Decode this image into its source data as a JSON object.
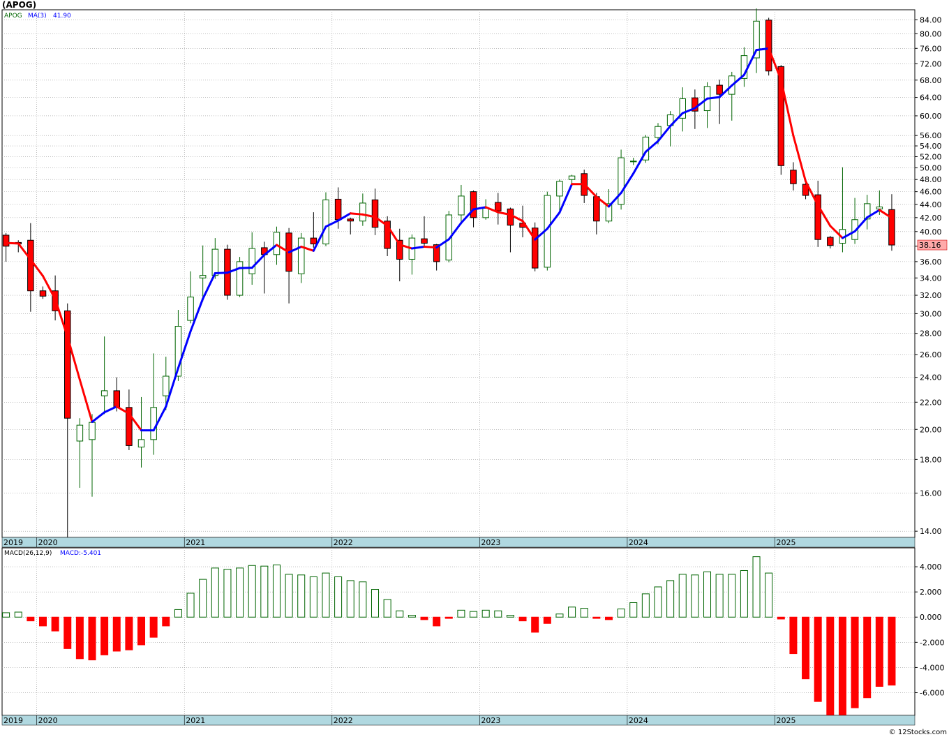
{
  "title": "(APOG)",
  "footer": "© 12Stocks.com",
  "colors": {
    "up": "#006400",
    "down": "#ff0000",
    "ma_up": "#0000ff",
    "ma_down": "#ff0000",
    "grid": "#999999",
    "axis_band": "#b0d8e0",
    "price_tag_bg": "#ffaaaa"
  },
  "chart_data": [
    {
      "type": "candlestick",
      "panel": "price",
      "legend": {
        "symbol": "APOG",
        "ma_label": "MA(3)",
        "ma_value": "41.90"
      },
      "scale": "log",
      "ylim": [
        13.7,
        87
      ],
      "y_ticks": [
        14,
        16,
        18,
        20,
        22,
        24,
        26,
        28,
        30,
        32,
        34,
        36,
        38,
        40,
        42,
        44,
        46,
        48,
        50,
        52,
        54,
        56,
        60,
        64,
        68,
        72,
        76,
        80,
        84
      ],
      "y_tick_labels": [
        "14.00",
        "16.00",
        "18.00",
        "20.00",
        "22.00",
        "24.00",
        "26.00",
        "28.00",
        "30.00",
        "32.00",
        "34.00",
        "36.00",
        "38.00",
        "40.00",
        "42.00",
        "44.00",
        "46.00",
        "48.00",
        "50.00",
        "52.00",
        "54.00",
        "56.00",
        "60.00",
        "64.00",
        "68.00",
        "72.00",
        "76.00",
        "80.00",
        "84.00"
      ],
      "last_price": "38.16",
      "x_labels": [
        "2019",
        "2020",
        "2021",
        "2022",
        "2023",
        "2024",
        "2025"
      ],
      "x_label_months": [
        0,
        3,
        15,
        27,
        39,
        51,
        63
      ],
      "months_first": "2019-10",
      "candles": [
        {
          "o": 39.5,
          "h": 39.8,
          "l": 36.0,
          "c": 38.0
        },
        {
          "o": 38.5,
          "h": 38.8,
          "l": 37.2,
          "c": 38.3
        },
        {
          "o": 38.8,
          "h": 41.2,
          "l": 30.2,
          "c": 32.5
        },
        {
          "o": 32.5,
          "h": 33.0,
          "l": 31.6,
          "c": 31.9
        },
        {
          "o": 32.5,
          "h": 34.3,
          "l": 29.3,
          "c": 30.3
        },
        {
          "o": 30.3,
          "h": 31.1,
          "l": 13.7,
          "c": 20.8
        },
        {
          "o": 19.2,
          "h": 20.8,
          "l": 16.3,
          "c": 20.3
        },
        {
          "o": 19.3,
          "h": 21.1,
          "l": 15.8,
          "c": 20.5
        },
        {
          "o": 22.5,
          "h": 27.7,
          "l": 21.1,
          "c": 22.9
        },
        {
          "o": 22.9,
          "h": 24.0,
          "l": 21.3,
          "c": 21.6
        },
        {
          "o": 21.6,
          "h": 23.0,
          "l": 18.6,
          "c": 18.9
        },
        {
          "o": 18.8,
          "h": 22.4,
          "l": 17.5,
          "c": 19.3
        },
        {
          "o": 19.3,
          "h": 26.1,
          "l": 18.3,
          "c": 21.6
        },
        {
          "o": 22.5,
          "h": 25.8,
          "l": 21.4,
          "c": 24.1
        },
        {
          "o": 24.1,
          "h": 30.4,
          "l": 23.7,
          "c": 28.7
        },
        {
          "o": 29.3,
          "h": 34.8,
          "l": 29.0,
          "c": 31.8
        },
        {
          "o": 34.0,
          "h": 38.1,
          "l": 31.3,
          "c": 34.3
        },
        {
          "o": 34.3,
          "h": 39.1,
          "l": 33.9,
          "c": 37.6
        },
        {
          "o": 37.6,
          "h": 38.2,
          "l": 31.5,
          "c": 32.0
        },
        {
          "o": 32.0,
          "h": 36.6,
          "l": 31.8,
          "c": 36.0
        },
        {
          "o": 34.5,
          "h": 39.9,
          "l": 33.2,
          "c": 37.7
        },
        {
          "o": 37.8,
          "h": 38.6,
          "l": 32.2,
          "c": 36.9
        },
        {
          "o": 36.9,
          "h": 40.7,
          "l": 35.6,
          "c": 39.9
        },
        {
          "o": 39.8,
          "h": 40.5,
          "l": 31.1,
          "c": 34.8
        },
        {
          "o": 34.5,
          "h": 39.8,
          "l": 33.4,
          "c": 39.1
        },
        {
          "o": 39.1,
          "h": 42.8,
          "l": 37.8,
          "c": 38.3
        },
        {
          "o": 38.3,
          "h": 45.9,
          "l": 38.0,
          "c": 44.7
        },
        {
          "o": 44.8,
          "h": 46.7,
          "l": 40.4,
          "c": 41.7
        },
        {
          "o": 41.8,
          "h": 42.0,
          "l": 39.6,
          "c": 41.5
        },
        {
          "o": 41.5,
          "h": 45.7,
          "l": 40.8,
          "c": 44.2
        },
        {
          "o": 44.7,
          "h": 46.5,
          "l": 39.5,
          "c": 40.6
        },
        {
          "o": 41.5,
          "h": 42.2,
          "l": 36.7,
          "c": 37.7
        },
        {
          "o": 38.8,
          "h": 40.4,
          "l": 33.6,
          "c": 36.3
        },
        {
          "o": 36.3,
          "h": 39.6,
          "l": 34.4,
          "c": 39.1
        },
        {
          "o": 39.0,
          "h": 42.2,
          "l": 38.0,
          "c": 38.4
        },
        {
          "o": 38.2,
          "h": 38.3,
          "l": 34.9,
          "c": 36.0
        },
        {
          "o": 36.2,
          "h": 43.0,
          "l": 35.9,
          "c": 42.4
        },
        {
          "o": 42.4,
          "h": 47.1,
          "l": 41.0,
          "c": 45.3
        },
        {
          "o": 46.0,
          "h": 46.2,
          "l": 40.6,
          "c": 42.0
        },
        {
          "o": 42.0,
          "h": 44.8,
          "l": 41.7,
          "c": 43.4
        },
        {
          "o": 44.3,
          "h": 45.8,
          "l": 41.0,
          "c": 43.0
        },
        {
          "o": 43.3,
          "h": 43.5,
          "l": 37.2,
          "c": 40.9
        },
        {
          "o": 41.2,
          "h": 43.8,
          "l": 39.2,
          "c": 40.6
        },
        {
          "o": 40.5,
          "h": 41.3,
          "l": 34.8,
          "c": 35.2
        },
        {
          "o": 35.3,
          "h": 46.0,
          "l": 34.9,
          "c": 45.4
        },
        {
          "o": 45.3,
          "h": 48.0,
          "l": 43.0,
          "c": 47.7
        },
        {
          "o": 48.0,
          "h": 48.8,
          "l": 47.0,
          "c": 48.6
        },
        {
          "o": 49.0,
          "h": 49.7,
          "l": 44.2,
          "c": 45.4
        },
        {
          "o": 45.2,
          "h": 45.8,
          "l": 39.6,
          "c": 41.5
        },
        {
          "o": 41.5,
          "h": 46.4,
          "l": 41.2,
          "c": 44.1
        },
        {
          "o": 44.0,
          "h": 53.3,
          "l": 43.2,
          "c": 51.8
        },
        {
          "o": 51.2,
          "h": 51.8,
          "l": 50.5,
          "c": 51.2
        },
        {
          "o": 51.4,
          "h": 56.1,
          "l": 50.9,
          "c": 55.7
        },
        {
          "o": 55.6,
          "h": 58.5,
          "l": 54.3,
          "c": 57.8
        },
        {
          "o": 58.0,
          "h": 61.0,
          "l": 53.9,
          "c": 60.2
        },
        {
          "o": 59.5,
          "h": 66.3,
          "l": 56.8,
          "c": 63.7
        },
        {
          "o": 63.9,
          "h": 65.8,
          "l": 57.3,
          "c": 61.0
        },
        {
          "o": 61.1,
          "h": 67.5,
          "l": 57.5,
          "c": 66.5
        },
        {
          "o": 66.8,
          "h": 68.1,
          "l": 58.3,
          "c": 64.7
        },
        {
          "o": 64.7,
          "h": 70.0,
          "l": 59.0,
          "c": 69.0
        },
        {
          "o": 68.4,
          "h": 76.3,
          "l": 66.4,
          "c": 74.1
        },
        {
          "o": 73.5,
          "h": 87.4,
          "l": 69.7,
          "c": 83.6
        },
        {
          "o": 83.9,
          "h": 84.6,
          "l": 69.1,
          "c": 70.2
        },
        {
          "o": 71.3,
          "h": 71.7,
          "l": 48.8,
          "c": 50.4
        },
        {
          "o": 49.6,
          "h": 51.0,
          "l": 46.2,
          "c": 47.3
        },
        {
          "o": 47.2,
          "h": 47.8,
          "l": 44.8,
          "c": 45.4
        },
        {
          "o": 45.5,
          "h": 47.8,
          "l": 37.9,
          "c": 38.9
        },
        {
          "o": 39.2,
          "h": 39.4,
          "l": 37.7,
          "c": 38.1
        },
        {
          "o": 38.4,
          "h": 50.1,
          "l": 37.2,
          "c": 40.3
        },
        {
          "o": 38.9,
          "h": 45.0,
          "l": 38.3,
          "c": 41.7
        },
        {
          "o": 41.8,
          "h": 45.5,
          "l": 40.3,
          "c": 44.1
        },
        {
          "o": 43.3,
          "h": 46.2,
          "l": 42.4,
          "c": 43.6
        },
        {
          "o": 43.2,
          "h": 45.6,
          "l": 37.4,
          "c": 38.16
        }
      ]
    },
    {
      "type": "bar",
      "panel": "macd",
      "legend": {
        "label": "MACD(26,12,9)",
        "value_label": "MACD:-5.401"
      },
      "ylim": [
        -7.8,
        5.5
      ],
      "y_ticks": [
        4,
        2,
        0,
        -2,
        -4,
        -6
      ],
      "y_tick_labels": [
        "4.000",
        "2.000",
        "0.000",
        "-2.000",
        "-4.000",
        "-6.000"
      ],
      "x_labels": [
        "2019",
        "2020",
        "2021",
        "2022",
        "2023",
        "2024",
        "2025"
      ],
      "values": [
        0.35,
        0.4,
        -0.3,
        -0.7,
        -1.1,
        -2.5,
        -3.3,
        -3.4,
        -3.0,
        -2.7,
        -2.6,
        -2.2,
        -1.6,
        -0.7,
        0.6,
        1.9,
        3.0,
        3.9,
        3.8,
        3.9,
        4.1,
        4.05,
        4.15,
        3.4,
        3.35,
        3.2,
        3.5,
        3.2,
        2.9,
        2.8,
        2.2,
        1.4,
        0.5,
        0.15,
        -0.2,
        -0.7,
        -0.1,
        0.55,
        0.45,
        0.55,
        0.5,
        0.15,
        -0.3,
        -1.2,
        -0.5,
        0.25,
        0.8,
        0.7,
        -0.1,
        -0.2,
        0.65,
        1.15,
        1.85,
        2.4,
        2.9,
        3.4,
        3.35,
        3.6,
        3.4,
        3.4,
        3.7,
        4.8,
        3.5,
        -0.15,
        -2.9,
        -4.9,
        -6.7,
        -7.8,
        -7.8,
        -7.2,
        -6.4,
        -5.5,
        -5.401
      ]
    }
  ]
}
